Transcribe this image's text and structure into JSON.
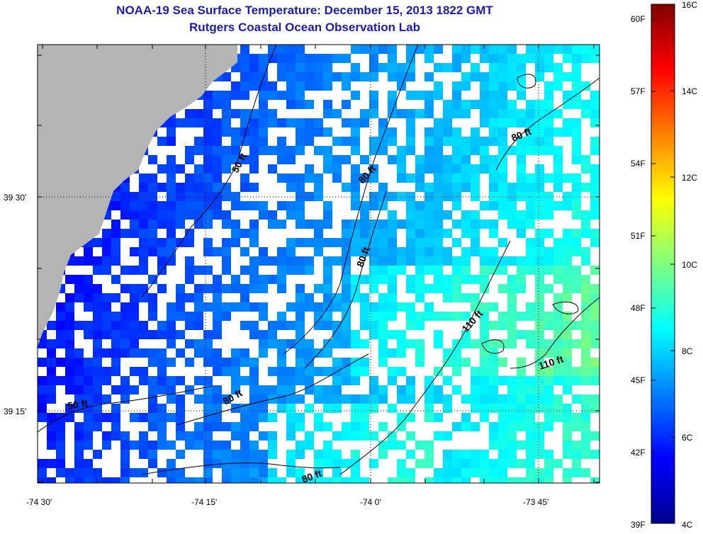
{
  "title": {
    "line1": "NOAA-19 Sea Surface Temperature:  December 15, 2013 1822 GMT",
    "line2": "Rutgers Coastal Ocean Observation Lab"
  },
  "map": {
    "lat_labels": [
      "39 30'",
      "39 15'"
    ],
    "lon_labels": [
      "-74 30'",
      "-74 15'",
      "-74 0'",
      "-73 45'"
    ],
    "contour_labels": [
      "50 ft",
      "80 ft",
      "80 ft",
      "80 ft",
      "110 ft",
      "110 ft",
      "50 ft",
      "80 ft",
      "80 ft"
    ]
  },
  "colorbar": {
    "fahrenheit_labels": [
      "60F",
      "57F",
      "54F",
      "51F",
      "48F",
      "45F",
      "42F",
      "39F"
    ],
    "celsius_labels": [
      "16C",
      "14C",
      "12C",
      "10C",
      "8C",
      "6C",
      "4C"
    ],
    "min_c": 4,
    "max_c": 16
  },
  "colors": {
    "title": "#1c1cb0",
    "land": "#b4b4b4",
    "cloud": "#ffffff"
  }
}
